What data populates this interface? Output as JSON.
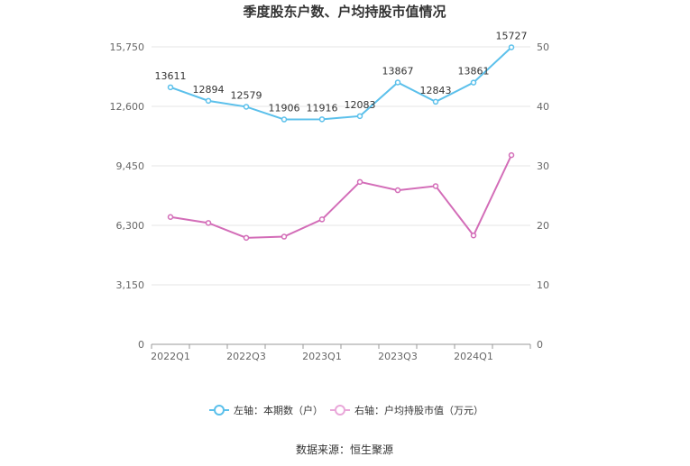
{
  "chart_data": {
    "type": "line",
    "title": "季度股东户数、户均持股市值情况",
    "categories": [
      "2022Q1",
      "2022Q2",
      "2022Q3",
      "2022Q4",
      "2023Q1",
      "2023Q2",
      "2023Q3",
      "2023Q4",
      "2024Q1",
      "2024Q2"
    ],
    "x_tick_labels": [
      "2022Q1",
      "2022Q3",
      "2023Q1",
      "2023Q3",
      "2024Q1"
    ],
    "left_axis": {
      "ticks": [
        "0",
        "3,150",
        "6,300",
        "9,450",
        "12,600",
        "15,750"
      ],
      "ylim": [
        0,
        15750
      ]
    },
    "right_axis": {
      "ticks": [
        "0",
        "10",
        "20",
        "30",
        "40",
        "50"
      ],
      "ylim": [
        0,
        50
      ]
    },
    "series": [
      {
        "name": "左轴：本期数（户）",
        "axis": "left",
        "color": "#5bc0eb",
        "values": [
          13611,
          12894,
          12579,
          11906,
          11916,
          12083,
          13867,
          12843,
          13861,
          15727
        ],
        "labels": [
          "13611",
          "12894",
          "12579",
          "11906",
          "11916",
          "12083",
          "13867",
          "12843",
          "13861",
          "15727"
        ]
      },
      {
        "name": "右轴：户均持股市值（万元）",
        "axis": "right",
        "color": "#d36db8",
        "values": [
          21.4,
          20.4,
          17.9,
          18.1,
          21.0,
          27.3,
          25.9,
          26.6,
          18.3,
          31.8
        ]
      }
    ],
    "grid": true,
    "legend": "bottom",
    "source": "数据来源：恒生聚源"
  }
}
